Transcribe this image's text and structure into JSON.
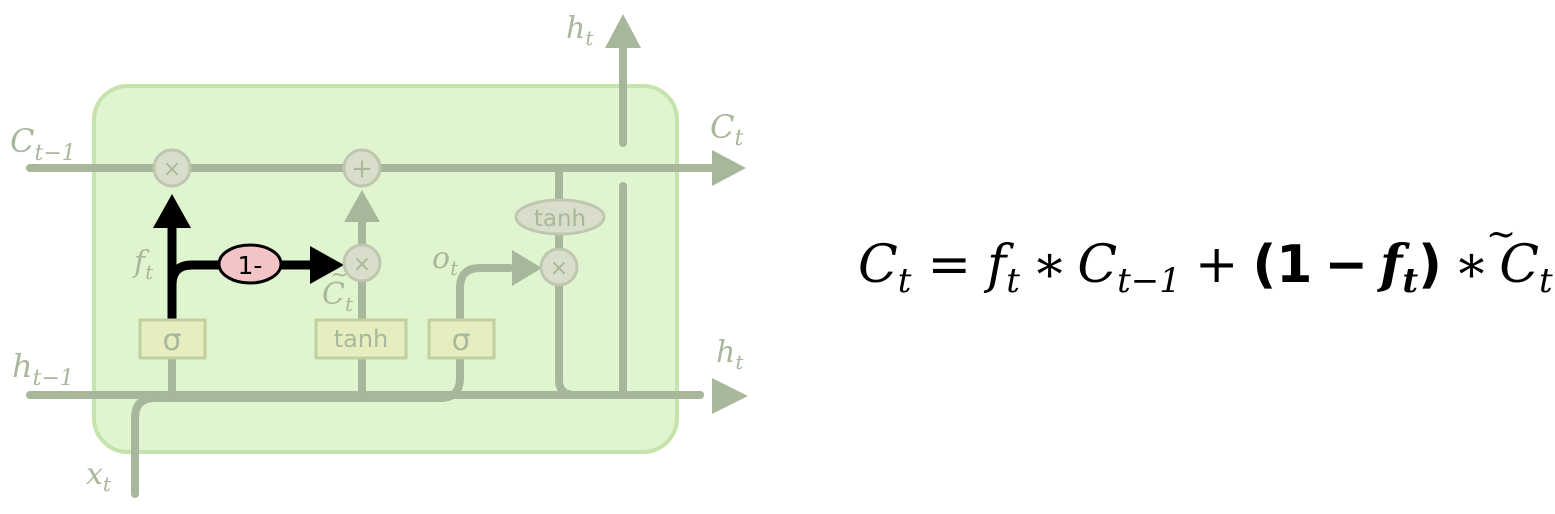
{
  "cell": {
    "inputs": {
      "c_prev": {
        "base": "C",
        "sub": "t−1"
      },
      "h_prev": {
        "base": "h",
        "sub": "t−1"
      },
      "x": {
        "base": "x",
        "sub": "t"
      }
    },
    "outputs": {
      "h_top": {
        "base": "h",
        "sub": "t"
      },
      "c": {
        "base": "C",
        "sub": "t"
      },
      "h_right": {
        "base": "h",
        "sub": "t"
      }
    },
    "gate_labels": {
      "forget": {
        "base": "f",
        "sub": "t"
      },
      "candidate": {
        "base": "C",
        "tilde": "~",
        "sub": "t"
      },
      "output": {
        "base": "o",
        "sub": "t"
      }
    },
    "ops": {
      "multiply": "×",
      "add": "+",
      "one_minus": "1-"
    },
    "layers": {
      "sigma_1": "σ",
      "tanh_layer": "tanh",
      "sigma_2": "σ",
      "tanh_pointwise": "tanh"
    }
  },
  "equation": {
    "lhs": {
      "base": "C",
      "sub": "t"
    },
    "equals": "=",
    "f": {
      "base": "f",
      "sub": "t"
    },
    "times_1": "∗",
    "c_prev": {
      "base": "C",
      "sub": "t−1"
    },
    "plus": "+",
    "open_paren": "(",
    "one": "1",
    "minus": "−",
    "f_bold": {
      "base": "f",
      "sub": "t"
    },
    "close_paren": ")",
    "times_2": "∗",
    "c_tilde": {
      "base": "C",
      "tilde": "~",
      "sub": "t"
    }
  },
  "colors": {
    "cell_fill": "#dff5cf",
    "cell_border": "#c5e3ad",
    "faded_line": "#a7b79b",
    "faded_text": "#a9b79c",
    "op_circle_fill": "#d8dec9",
    "op_circle_stroke": "#c0c6b0",
    "layer_fill": "#e6eec0",
    "layer_stroke": "#c3cf9c",
    "highlight": "#000000",
    "one_minus_fill": "#f3c3c6",
    "equation_text": "#000000"
  }
}
